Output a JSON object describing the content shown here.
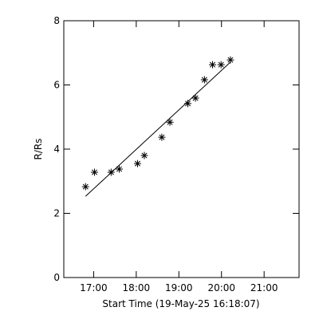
{
  "chart_data": {
    "type": "scatter",
    "x_label": "Start Time (19-May-25 16:18:07)",
    "y_label": "R/Rs",
    "x": [
      16.81,
      17.02,
      17.41,
      17.6,
      18.03,
      18.19,
      18.6,
      18.79,
      19.21,
      19.39,
      19.6,
      19.79,
      19.99,
      20.21
    ],
    "values": [
      2.83,
      3.28,
      3.28,
      3.38,
      3.55,
      3.8,
      4.37,
      4.84,
      5.42,
      5.59,
      6.16,
      6.63,
      6.63,
      6.78
    ],
    "fit": {
      "x": [
        16.81,
        20.21
      ],
      "y": [
        2.53,
        6.71
      ]
    },
    "color": "#000000",
    "xlim": [
      16.3,
      21.82
    ],
    "xticks": [
      {
        "value": 17,
        "label": "17:00"
      },
      {
        "value": 18,
        "label": "18:00"
      },
      {
        "value": 19,
        "label": "19:00"
      },
      {
        "value": 20,
        "label": "20:00"
      },
      {
        "value": 21,
        "label": "21:00"
      }
    ],
    "ylim": [
      0,
      8
    ],
    "yticks": [
      0,
      2,
      4,
      6,
      8
    ]
  }
}
